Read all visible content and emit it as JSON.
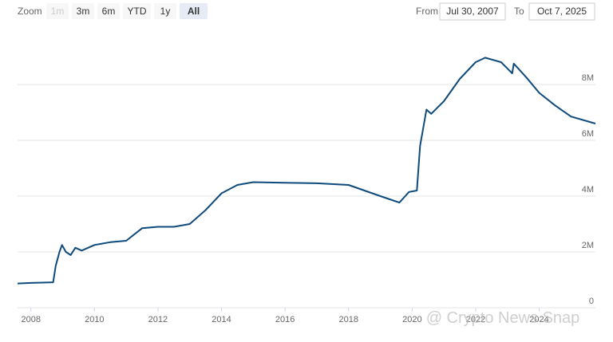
{
  "chart_data": {
    "type": "line",
    "range_selector": {
      "label": "Zoom",
      "buttons": [
        "1m",
        "3m",
        "6m",
        "YTD",
        "1y",
        "All"
      ],
      "from_label": "From",
      "from": "Jul 30, 2007",
      "to_label": "To",
      "to": "Oct 7, 2025"
    },
    "watermark": "@ Crypto News Snap",
    "x": [
      2007.58,
      2008.0,
      2008.7,
      2008.78,
      2008.9,
      2008.98,
      2009.1,
      2009.25,
      2009.4,
      2009.6,
      2010.0,
      2010.5,
      2011.0,
      2011.5,
      2012.0,
      2012.5,
      2013.0,
      2013.5,
      2014.0,
      2014.5,
      2015.0,
      2016.0,
      2017.0,
      2018.0,
      2019.0,
      2019.6,
      2019.9,
      2020.15,
      2020.25,
      2020.45,
      2020.6,
      2021.0,
      2021.5,
      2022.0,
      2022.3,
      2022.8,
      2023.15,
      2023.2,
      2023.6,
      2024.0,
      2024.5,
      2025.0,
      2025.77
    ],
    "values": [
      870000,
      890000,
      910000,
      1500000,
      2000000,
      2250000,
      2000000,
      1890000,
      2150000,
      2050000,
      2250000,
      2350000,
      2400000,
      2850000,
      2900000,
      2900000,
      3000000,
      3500000,
      4100000,
      4400000,
      4500000,
      4480000,
      4460000,
      4400000,
      4000000,
      3770000,
      4150000,
      4200000,
      5800000,
      7100000,
      6950000,
      7400000,
      8200000,
      8800000,
      8960000,
      8800000,
      8400000,
      8750000,
      8250000,
      7700000,
      7250000,
      6850000,
      6600000
    ],
    "color": "#0e4a7b",
    "xlim": [
      2007.58,
      2025.77
    ],
    "xticks": [
      2008,
      2010,
      2012,
      2014,
      2016,
      2018,
      2020,
      2022,
      2024
    ],
    "ylim": [
      0,
      10000000
    ],
    "yticks": [
      0,
      {
        "value": 2000000,
        "label": "2M"
      },
      {
        "value": 4000000,
        "label": "4M"
      },
      {
        "value": 6000000,
        "label": "6M"
      },
      {
        "value": 8000000,
        "label": "8M"
      }
    ],
    "grid": true
  }
}
